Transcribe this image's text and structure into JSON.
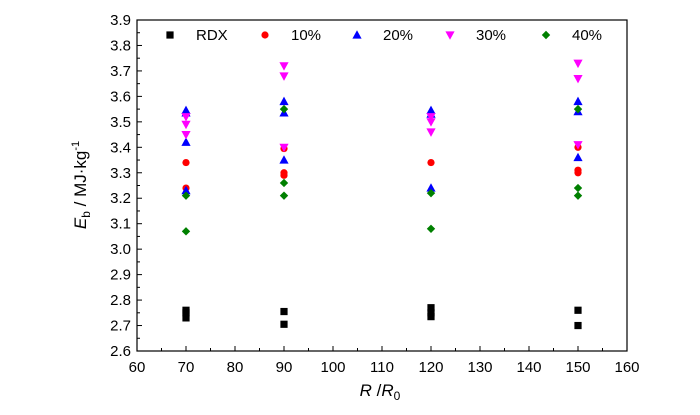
{
  "chart_data": {
    "type": "scatter",
    "xlim": [
      60,
      160
    ],
    "ylim": [
      2.6,
      3.9
    ],
    "x_ticks": [
      60,
      70,
      80,
      90,
      100,
      110,
      120,
      130,
      140,
      150,
      160
    ],
    "y_ticks": [
      2.6,
      2.7,
      2.8,
      2.9,
      3.0,
      3.1,
      3.2,
      3.3,
      3.4,
      3.5,
      3.6,
      3.7,
      3.8,
      3.9
    ],
    "y_tick_labels": [
      "2.6",
      "2.7",
      "2.8",
      "2.9",
      "3.0",
      "3.1",
      "3.2",
      "3.3",
      "3.4",
      "3.5",
      "3.6",
      "3.7",
      "3.8",
      "3.9"
    ],
    "xlabel": {
      "main": "R",
      "sep": " /",
      "sub_main": "R",
      "sub": "0"
    },
    "ylabel": {
      "main": "E",
      "sub": "b",
      "unit": " / MJ·kg",
      "sup": "-1"
    },
    "grid": false,
    "legend_position": "top",
    "series": [
      {
        "name": "RDX",
        "marker": "square",
        "color": "#000000",
        "points": [
          [
            70,
            2.73
          ],
          [
            70,
            2.75
          ],
          [
            70,
            2.76
          ],
          [
            90,
            2.705
          ],
          [
            90,
            2.755
          ],
          [
            120,
            2.735
          ],
          [
            120,
            2.75
          ],
          [
            120,
            2.77
          ],
          [
            150,
            2.7
          ],
          [
            150,
            2.76
          ]
        ]
      },
      {
        "name": "10%",
        "marker": "circle",
        "color": "#ff0000",
        "points": [
          [
            70,
            3.24
          ],
          [
            70,
            3.34
          ],
          [
            90,
            3.29
          ],
          [
            90,
            3.3
          ],
          [
            90,
            3.395
          ],
          [
            120,
            3.34
          ],
          [
            150,
            3.3
          ],
          [
            150,
            3.31
          ],
          [
            150,
            3.4
          ]
        ]
      },
      {
        "name": "20%",
        "marker": "triangle-up",
        "color": "#0000ff",
        "points": [
          [
            70,
            3.23
          ],
          [
            70,
            3.42
          ],
          [
            70,
            3.535
          ],
          [
            70,
            3.545
          ],
          [
            90,
            3.35
          ],
          [
            90,
            3.535
          ],
          [
            90,
            3.58
          ],
          [
            120,
            3.24
          ],
          [
            120,
            3.53
          ],
          [
            120,
            3.545
          ],
          [
            150,
            3.36
          ],
          [
            150,
            3.54
          ],
          [
            150,
            3.58
          ]
        ]
      },
      {
        "name": "30%",
        "marker": "triangle-down",
        "color": "#ff00ff",
        "points": [
          [
            70,
            3.45
          ],
          [
            70,
            3.49
          ],
          [
            70,
            3.52
          ],
          [
            90,
            3.4
          ],
          [
            90,
            3.68
          ],
          [
            90,
            3.72
          ],
          [
            120,
            3.46
          ],
          [
            120,
            3.5
          ],
          [
            120,
            3.52
          ],
          [
            150,
            3.41
          ],
          [
            150,
            3.67
          ],
          [
            150,
            3.73
          ]
        ]
      },
      {
        "name": "40%",
        "marker": "diamond",
        "color": "#008000",
        "points": [
          [
            70,
            3.07
          ],
          [
            70,
            3.21
          ],
          [
            90,
            3.21
          ],
          [
            90,
            3.26
          ],
          [
            90,
            3.55
          ],
          [
            120,
            3.08
          ],
          [
            120,
            3.22
          ],
          [
            150,
            3.21
          ],
          [
            150,
            3.24
          ],
          [
            150,
            3.55
          ]
        ]
      }
    ]
  }
}
